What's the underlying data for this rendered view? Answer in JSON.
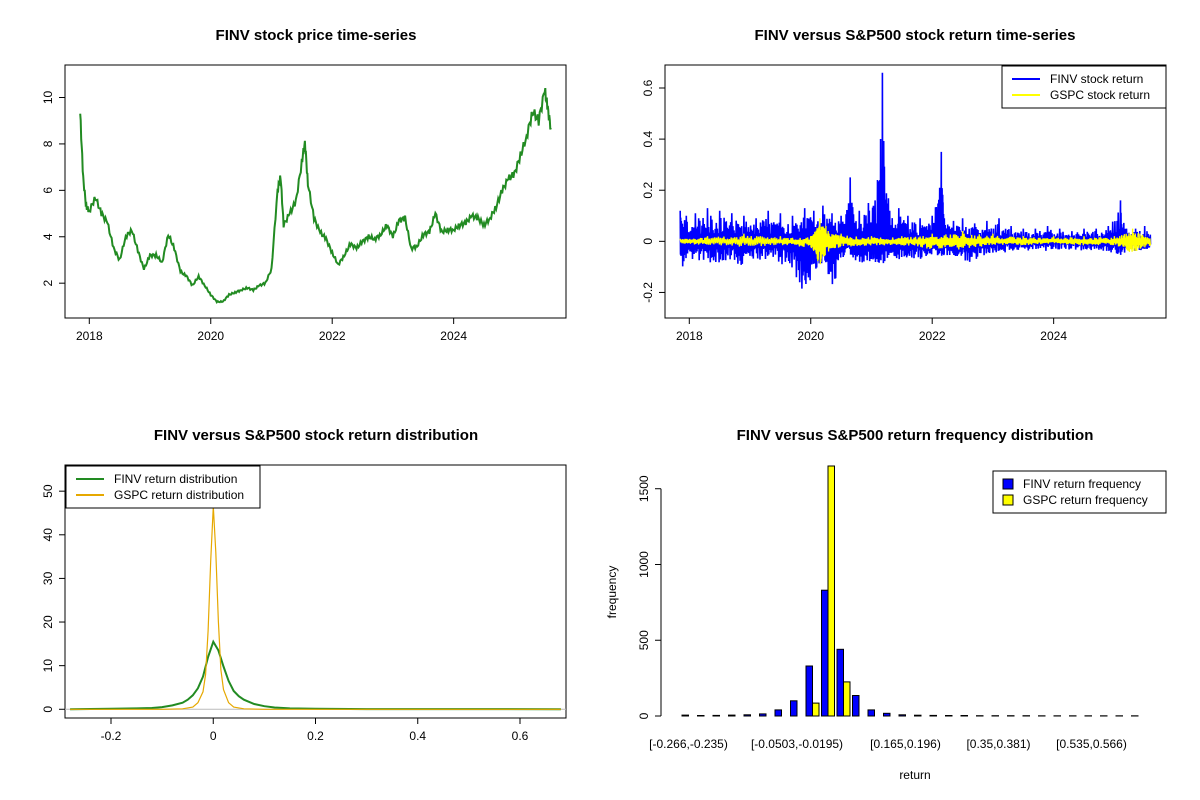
{
  "chart_data": [
    {
      "type": "line",
      "title": "FINV stock price time-series",
      "xlim": [
        2017.6,
        2025.85
      ],
      "ylim": [
        0.5,
        11.4
      ],
      "x_ticks": [
        2018,
        2020,
        2022,
        2024
      ],
      "y_ticks": [
        2,
        4,
        6,
        8,
        10
      ],
      "xlabel": "",
      "ylabel": "",
      "series": [
        {
          "color": "#228B22",
          "x": [
            2017.85,
            2017.9,
            2017.95,
            2018.0,
            2018.1,
            2018.2,
            2018.3,
            2018.4,
            2018.5,
            2018.6,
            2018.7,
            2018.8,
            2018.9,
            2019.0,
            2019.1,
            2019.2,
            2019.3,
            2019.4,
            2019.5,
            2019.6,
            2019.7,
            2019.8,
            2019.9,
            2020.0,
            2020.1,
            2020.2,
            2020.3,
            2020.4,
            2020.5,
            2020.6,
            2020.7,
            2020.8,
            2020.9,
            2021.0,
            2021.1,
            2021.15,
            2021.2,
            2021.3,
            2021.4,
            2021.5,
            2021.55,
            2021.6,
            2021.7,
            2021.8,
            2021.9,
            2022.0,
            2022.1,
            2022.2,
            2022.3,
            2022.4,
            2022.5,
            2022.6,
            2022.7,
            2022.8,
            2022.9,
            2023.0,
            2023.1,
            2023.2,
            2023.3,
            2023.4,
            2023.5,
            2023.6,
            2023.7,
            2023.8,
            2023.9,
            2024.0,
            2024.1,
            2024.2,
            2024.3,
            2024.4,
            2024.5,
            2024.6,
            2024.7,
            2024.8,
            2024.9,
            2025.0,
            2025.1,
            2025.2,
            2025.3,
            2025.4,
            2025.5,
            2025.55,
            2025.6
          ],
          "y": [
            9.3,
            6.5,
            5.3,
            5.1,
            5.7,
            5.0,
            4.6,
            3.5,
            3.0,
            4.0,
            4.3,
            3.4,
            2.6,
            3.2,
            3.2,
            2.9,
            4.1,
            3.5,
            2.5,
            2.3,
            1.9,
            2.3,
            1.9,
            1.5,
            1.2,
            1.2,
            1.5,
            1.6,
            1.7,
            1.8,
            1.7,
            1.9,
            2.0,
            2.6,
            6.0,
            6.6,
            4.5,
            5.0,
            5.5,
            7.2,
            8.1,
            6.3,
            4.8,
            4.2,
            3.9,
            3.3,
            2.8,
            3.2,
            3.7,
            3.5,
            3.8,
            4.0,
            3.9,
            4.1,
            4.5,
            4.0,
            4.7,
            4.8,
            3.5,
            3.6,
            4.1,
            4.2,
            5.0,
            4.2,
            4.3,
            4.3,
            4.5,
            4.6,
            4.9,
            4.8,
            4.5,
            4.8,
            5.3,
            6.0,
            6.5,
            6.7,
            7.5,
            8.3,
            9.4,
            9.0,
            10.3,
            9.5,
            8.7
          ]
        }
      ]
    },
    {
      "type": "line",
      "title": "FINV versus S&P500 stock return time-series",
      "xlim": [
        2017.6,
        2025.85
      ],
      "ylim": [
        -0.3,
        0.69
      ],
      "x_ticks": [
        2018,
        2020,
        2022,
        2024
      ],
      "y_ticks": [
        -0.2,
        0.0,
        0.2,
        0.4,
        0.6
      ],
      "xlabel": "",
      "ylabel": "",
      "legend": {
        "position": "top-right",
        "entries": [
          "FINV stock return",
          "GSPC stock return"
        ]
      },
      "series": [
        {
          "name": "FINV stock return",
          "color": "#0000FF",
          "x": [
            2017.85,
            2017.95,
            2018.1,
            2018.3,
            2018.5,
            2018.7,
            2018.9,
            2019.1,
            2019.3,
            2019.5,
            2019.7,
            2019.9,
            2020.05,
            2020.2,
            2020.35,
            2020.5,
            2020.65,
            2020.8,
            2020.95,
            2021.1,
            2021.18,
            2021.3,
            2021.45,
            2021.6,
            2021.8,
            2022.0,
            2022.15,
            2022.2,
            2022.35,
            2022.5,
            2022.7,
            2022.9,
            2023.1,
            2023.3,
            2023.5,
            2023.7,
            2023.9,
            2024.1,
            2024.3,
            2024.5,
            2024.7,
            2024.9,
            2025.1,
            2025.2,
            2025.35,
            2025.5,
            2025.6
          ],
          "high": [
            0.12,
            0.1,
            0.11,
            0.13,
            0.12,
            0.11,
            0.1,
            0.09,
            0.12,
            0.11,
            0.1,
            0.13,
            0.12,
            0.14,
            0.11,
            0.1,
            0.25,
            0.12,
            0.15,
            0.24,
            0.66,
            0.12,
            0.13,
            0.1,
            0.09,
            0.1,
            0.35,
            0.09,
            0.08,
            0.09,
            0.07,
            0.08,
            0.09,
            0.06,
            0.05,
            0.05,
            0.06,
            0.05,
            0.04,
            0.05,
            0.05,
            0.06,
            0.16,
            0.05,
            0.05,
            0.06,
            0.05
          ],
          "low": [
            -0.15,
            -0.1,
            -0.09,
            -0.12,
            -0.11,
            -0.1,
            -0.12,
            -0.09,
            -0.1,
            -0.11,
            -0.16,
            -0.27,
            -0.15,
            -0.11,
            -0.24,
            -0.1,
            -0.09,
            -0.12,
            -0.11,
            -0.1,
            -0.12,
            -0.1,
            -0.09,
            -0.08,
            -0.09,
            -0.08,
            -0.07,
            -0.08,
            -0.07,
            -0.09,
            -0.11,
            -0.06,
            -0.06,
            -0.05,
            -0.05,
            -0.04,
            -0.05,
            -0.04,
            -0.04,
            -0.05,
            -0.04,
            -0.05,
            -0.09,
            -0.05,
            -0.05,
            -0.04,
            -0.04
          ]
        },
        {
          "name": "GSPC stock return",
          "color": "#FFFF00",
          "x": [
            2017.85,
            2018.3,
            2018.9,
            2019.5,
            2020.0,
            2020.15,
            2020.25,
            2020.5,
            2021.0,
            2021.5,
            2022.0,
            2022.5,
            2023.0,
            2023.5,
            2024.0,
            2024.5,
            2025.0,
            2025.3,
            2025.6
          ],
          "high": [
            0.01,
            0.02,
            0.03,
            0.02,
            0.02,
            0.09,
            0.06,
            0.03,
            0.02,
            0.02,
            0.03,
            0.04,
            0.03,
            0.02,
            0.02,
            0.02,
            0.02,
            0.05,
            0.02
          ],
          "low": [
            -0.01,
            -0.02,
            -0.03,
            -0.02,
            -0.03,
            -0.12,
            -0.06,
            -0.03,
            -0.02,
            -0.02,
            -0.04,
            -0.04,
            -0.02,
            -0.02,
            -0.01,
            -0.02,
            -0.02,
            -0.06,
            -0.02
          ]
        }
      ]
    },
    {
      "type": "line",
      "title": "FINV versus S&P500 stock return distribution",
      "xlim": [
        -0.29,
        0.69
      ],
      "ylim": [
        -2,
        56
      ],
      "x_ticks": [
        -0.2,
        0.0,
        0.2,
        0.4,
        0.6
      ],
      "y_ticks": [
        0,
        10,
        20,
        30,
        40,
        50
      ],
      "xlabel": "",
      "ylabel": "",
      "legend": {
        "position": "top-left",
        "entries": [
          "FINV return distribution",
          "GSPC return distribution"
        ]
      },
      "series": [
        {
          "name": "FINV return distribution",
          "color": "#228B22",
          "x": [
            -0.28,
            -0.2,
            -0.15,
            -0.12,
            -0.1,
            -0.08,
            -0.06,
            -0.05,
            -0.04,
            -0.03,
            -0.02,
            -0.01,
            0.0,
            0.01,
            0.02,
            0.03,
            0.04,
            0.05,
            0.06,
            0.08,
            0.1,
            0.12,
            0.15,
            0.2,
            0.3,
            0.5,
            0.68
          ],
          "y": [
            0,
            0.1,
            0.2,
            0.3,
            0.5,
            0.9,
            1.5,
            2.2,
            3.2,
            4.8,
            7.5,
            12.0,
            15.5,
            13.5,
            9.8,
            6.5,
            4.2,
            3.0,
            2.2,
            1.2,
            0.7,
            0.4,
            0.2,
            0.1,
            0.05,
            0.05,
            0.0
          ]
        },
        {
          "name": "GSPC return distribution",
          "color": "#E6A800",
          "x": [
            -0.28,
            -0.1,
            -0.06,
            -0.04,
            -0.03,
            -0.02,
            -0.015,
            -0.01,
            -0.005,
            0.0,
            0.005,
            0.01,
            0.015,
            0.02,
            0.03,
            0.04,
            0.06,
            0.1,
            0.68
          ],
          "y": [
            0,
            0,
            0.1,
            0.5,
            1.5,
            4.0,
            8.0,
            18.0,
            34.0,
            46.5,
            36.0,
            20.0,
            9.0,
            4.5,
            1.5,
            0.5,
            0.1,
            0,
            0
          ]
        }
      ]
    },
    {
      "type": "bar",
      "title": "FINV versus S&P500 return frequency distribution",
      "xlabel": "return",
      "ylabel": "frequency",
      "ylim": [
        0,
        1650
      ],
      "y_ticks": [
        0,
        500,
        1000,
        1500
      ],
      "x_tick_labels": [
        "[-0.266,-0.235)",
        "[-0.0503,-0.0195)",
        "[0.165,0.196)",
        "[0.35,0.381)",
        "[0.535,0.566)"
      ],
      "x_tick_bins": [
        0,
        7,
        14,
        20,
        26
      ],
      "n_bins": 30,
      "legend": {
        "position": "top-right",
        "entries": [
          "FINV return frequency",
          "GSPC return frequency"
        ]
      },
      "series": [
        {
          "name": "FINV return frequency",
          "color": "#0000FF",
          "values": [
            6,
            3,
            4,
            6,
            8,
            14,
            40,
            100,
            330,
            830,
            440,
            135,
            40,
            18,
            8,
            5,
            4,
            3,
            3,
            2,
            2,
            2,
            2,
            1,
            1,
            1,
            1,
            1,
            1,
            1
          ]
        },
        {
          "name": "GSPC return frequency",
          "color": "#FFFF00",
          "values": [
            0,
            0,
            0,
            0,
            0,
            0,
            0,
            0,
            85,
            1650,
            225,
            0,
            0,
            0,
            0,
            0,
            0,
            0,
            0,
            0,
            0,
            0,
            0,
            0,
            0,
            0,
            0,
            0,
            0,
            0
          ]
        }
      ]
    }
  ]
}
